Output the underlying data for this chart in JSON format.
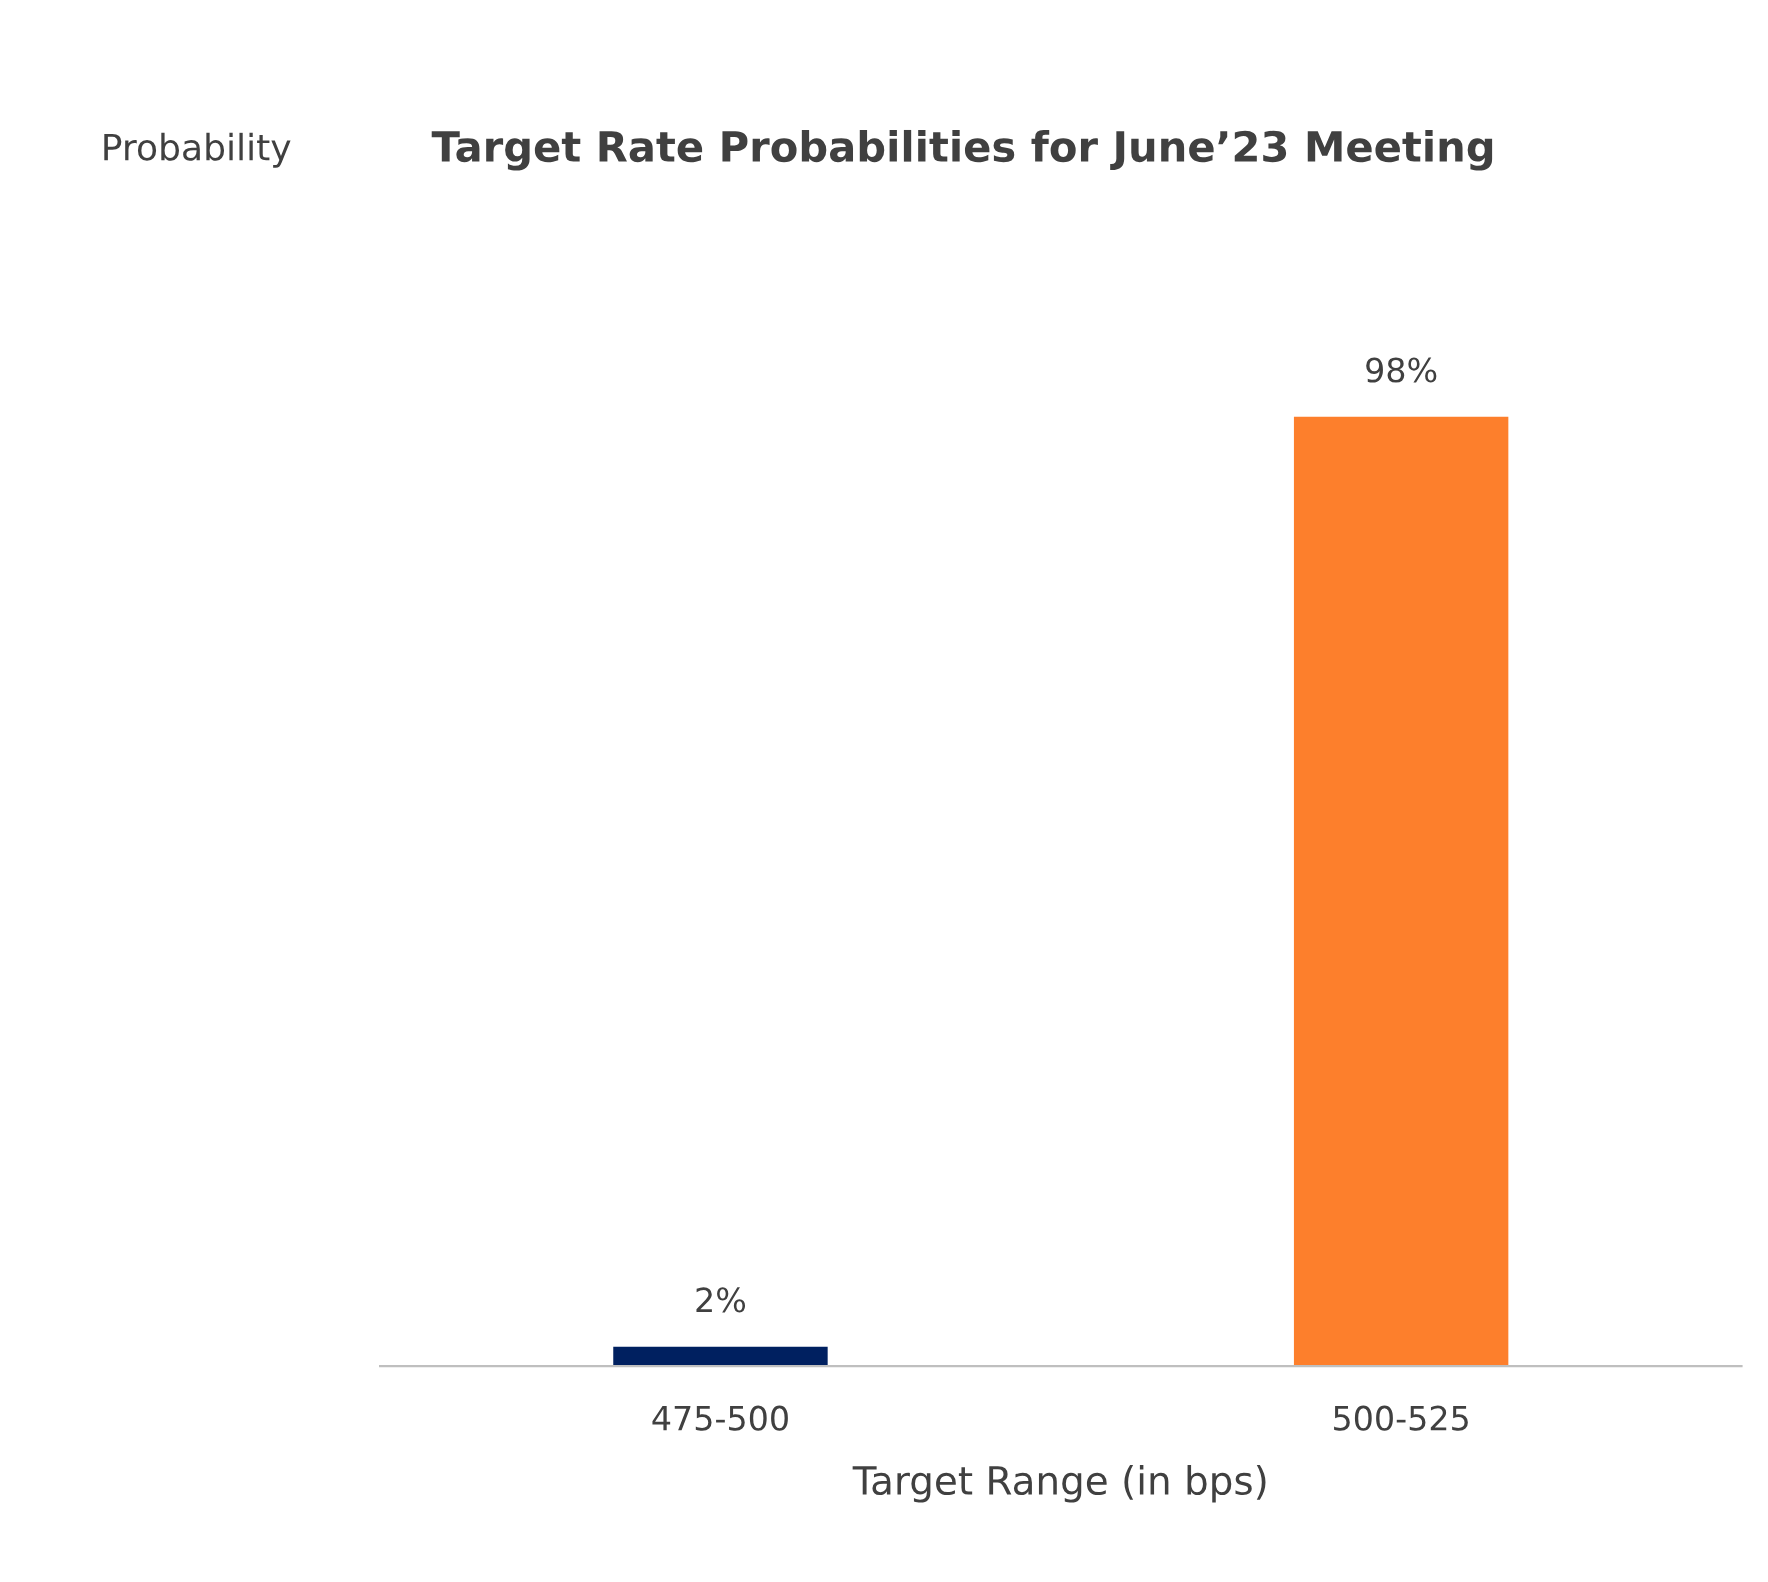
{
  "chart_data": {
    "type": "bar",
    "title": "Target Rate Probabilities for June’23 Meeting",
    "annotations": [
      "Probability"
    ],
    "xlabel": "Target Range (in bps)",
    "categories": [
      "475-500",
      "500-525"
    ],
    "values": [
      2,
      98
    ],
    "colors": [
      "#002060",
      "#fd7f2c"
    ],
    "value_labels": [
      "2%",
      "98%"
    ],
    "tick_labels": "x",
    "grid": false,
    "legend": false
  }
}
